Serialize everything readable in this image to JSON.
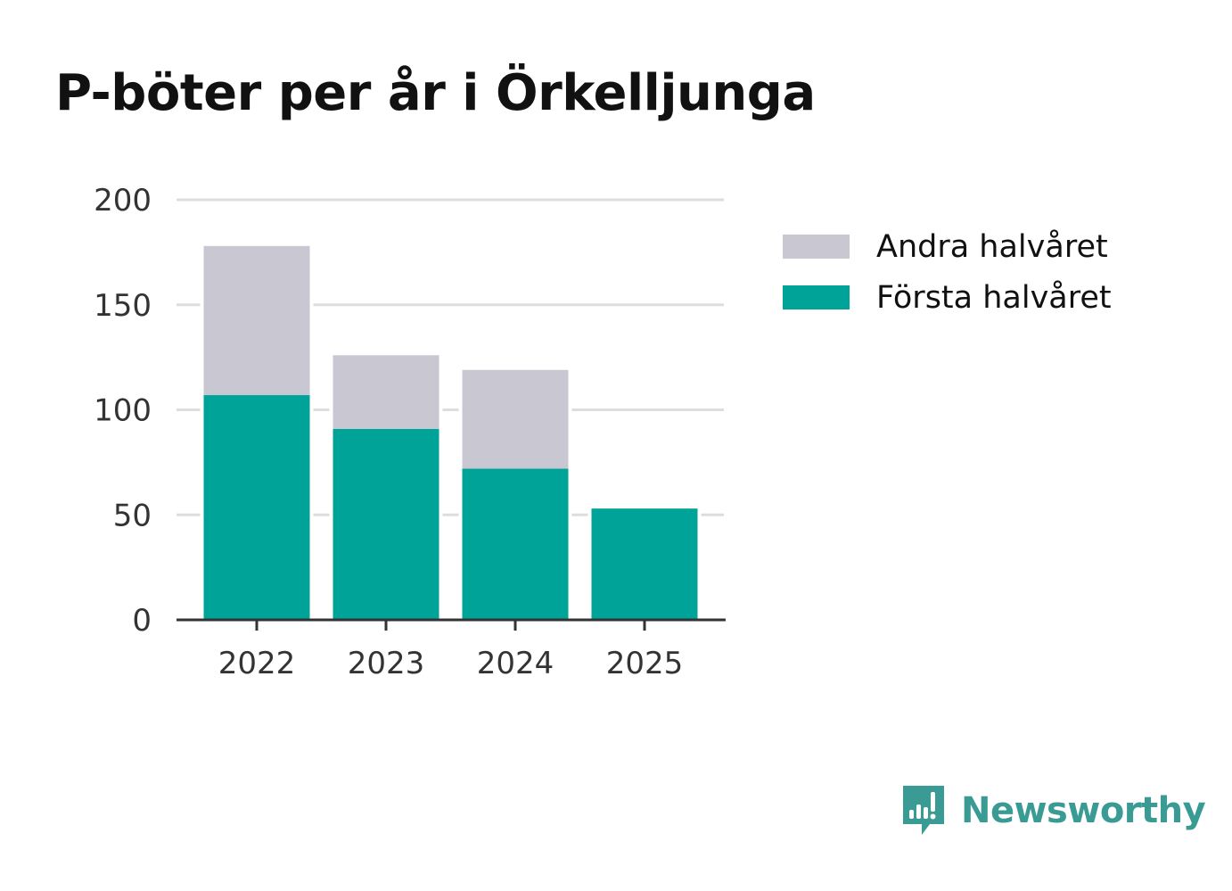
{
  "title": "P-böter per år i Örkelljunga",
  "brand": {
    "name": "Newsworthy",
    "color": "#3a9b94"
  },
  "legend": [
    {
      "label": "Andra halvåret",
      "color": "#c8c7d2"
    },
    {
      "label": "Första halvåret",
      "color": "#00a398"
    }
  ],
  "chart_data": {
    "type": "bar",
    "stacked": true,
    "title": "P-böter per år i Örkelljunga",
    "xlabel": "",
    "ylabel": "",
    "categories": [
      "2022",
      "2023",
      "2024",
      "2025"
    ],
    "series": [
      {
        "name": "Första halvåret",
        "color": "#00a398",
        "values": [
          107,
          91,
          72,
          53
        ]
      },
      {
        "name": "Andra halvåret",
        "color": "#c8c7d2",
        "values": [
          71,
          35,
          47,
          0
        ]
      }
    ],
    "yticks": [
      0,
      50,
      100,
      150,
      200
    ],
    "ylim": [
      0,
      200
    ],
    "grid": true,
    "legend_position": "right"
  }
}
